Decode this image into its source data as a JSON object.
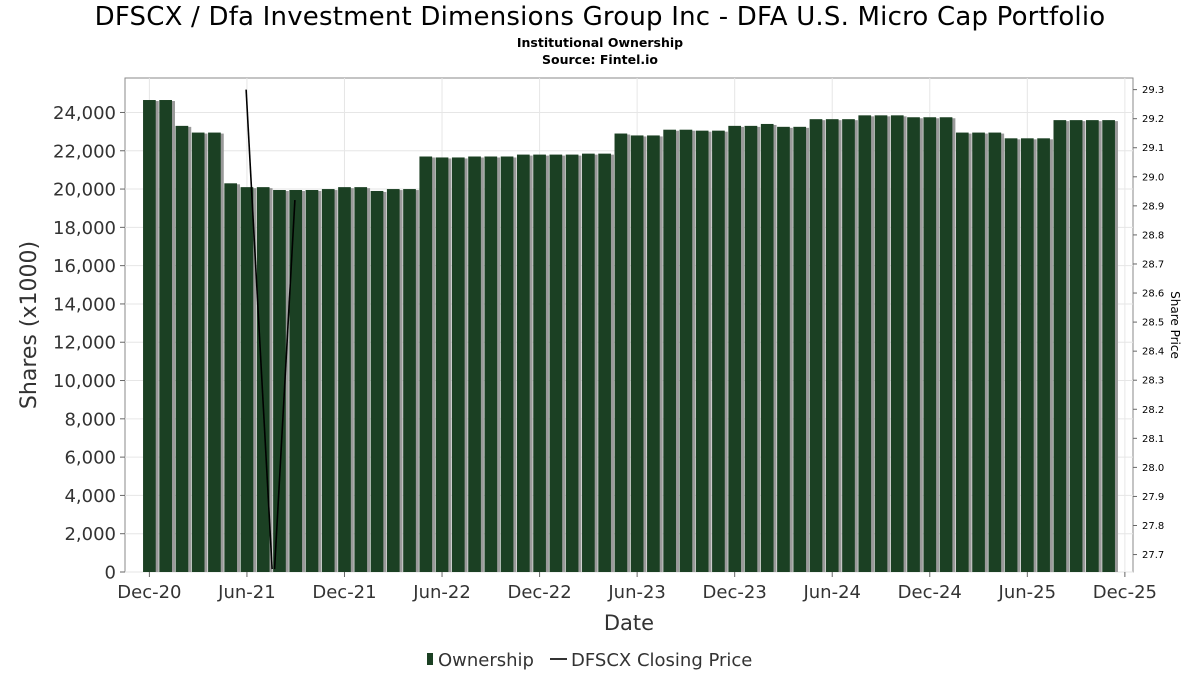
{
  "chart_data": {
    "type": "bar",
    "title": "DFSCX / Dfa Investment Dimensions Group Inc - DFA U.S. Micro Cap Portfolio",
    "subtitle": "Institutional Ownership",
    "source": "Source: Fintel.io",
    "xlabel": "Date",
    "ylabel": "Shares (x1000)",
    "y2label": "Share Price",
    "ylim": [
      0,
      25800
    ],
    "y2lim": [
      27.64,
      29.34
    ],
    "yticks": [
      0,
      2000,
      4000,
      6000,
      8000,
      10000,
      12000,
      14000,
      16000,
      18000,
      20000,
      22000,
      24000
    ],
    "yticklabels": [
      "0",
      "2,000",
      "4,000",
      "6,000",
      "8,000",
      "10,000",
      "12,000",
      "14,000",
      "16,000",
      "18,000",
      "20,000",
      "22,000",
      "24,000"
    ],
    "y2ticks": [
      27.7,
      27.8,
      27.9,
      28.0,
      28.1,
      28.2,
      28.3,
      28.4,
      28.5,
      28.6,
      28.7,
      28.8,
      28.9,
      29.0,
      29.1,
      29.2,
      29.3
    ],
    "y2ticklabels": [
      "27.7",
      "27.8",
      "27.9",
      "28.0",
      "28.1",
      "28.2",
      "28.3",
      "28.4",
      "28.5",
      "28.6",
      "28.7",
      "28.8",
      "28.9",
      "29.0",
      "29.1",
      "29.2",
      "29.3"
    ],
    "xrange": [
      -1.5,
      60.5
    ],
    "xticks": [
      0,
      6,
      12,
      18,
      24,
      30,
      36,
      42,
      48,
      54,
      60
    ],
    "xticklabels": [
      "Dec-20",
      "Jun-21",
      "Dec-21",
      "Jun-22",
      "Dec-22",
      "Jun-23",
      "Dec-23",
      "Jun-24",
      "Dec-24",
      "Jun-25",
      "Dec-25"
    ],
    "legend": {
      "position": "bottom",
      "items": [
        "Ownership",
        "DFSCX Closing Price"
      ]
    },
    "grid": true,
    "series": [
      {
        "name": "Ownership",
        "color": "#1b4023",
        "x": [
          0,
          1,
          2,
          3,
          4,
          5,
          6,
          7,
          8,
          9,
          10,
          11,
          12,
          13,
          14,
          15,
          16,
          17,
          18,
          19,
          20,
          21,
          22,
          23,
          24,
          25,
          26,
          27,
          28,
          29,
          30,
          31,
          32,
          33,
          34,
          35,
          36,
          37,
          38,
          39,
          40,
          41,
          42,
          43,
          44,
          45,
          46,
          47,
          48,
          49,
          50,
          51,
          52,
          53,
          54,
          55,
          56,
          57,
          58,
          59
        ],
        "values": [
          24650,
          24650,
          23300,
          22950,
          22950,
          20300,
          20100,
          20100,
          19950,
          19950,
          19950,
          20000,
          20100,
          20100,
          19900,
          20000,
          20000,
          21700,
          21650,
          21650,
          21700,
          21700,
          21700,
          21800,
          21800,
          21800,
          21800,
          21850,
          21850,
          22900,
          22800,
          22800,
          23100,
          23100,
          23050,
          23050,
          23300,
          23300,
          23400,
          23250,
          23250,
          23650,
          23650,
          23650,
          23850,
          23850,
          23850,
          23750,
          23750,
          23750,
          22950,
          22950,
          22950,
          22650,
          22650,
          22650,
          23600,
          23600,
          23600,
          23600
        ]
      },
      {
        "name": "DFSCX Closing Price",
        "color": "#000000",
        "segments": [
          {
            "x": [
              5.95,
              7.55
            ],
            "y": [
              29.3,
              27.65
            ]
          },
          {
            "x": [
              7.7,
              8.95
            ],
            "y": [
              27.65,
              28.92
            ]
          }
        ]
      }
    ]
  }
}
